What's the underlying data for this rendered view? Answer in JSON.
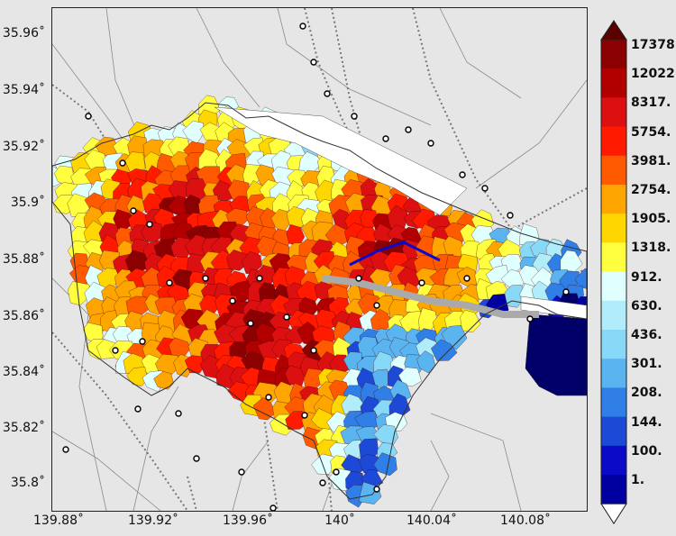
{
  "map": {
    "y_ticks": [
      "35.96˚",
      "35.94˚",
      "35.92˚",
      "35.9˚",
      "35.88˚",
      "35.86˚",
      "35.84˚",
      "35.82˚",
      "35.8˚"
    ],
    "x_ticks": [
      "139.88˚",
      "139.92˚",
      "139.96˚",
      "140˚",
      "140.04˚",
      "140.08˚"
    ],
    "background_color": "#e6e6e6",
    "water_color": "#aaaaaa",
    "road_color": "#8a8a8a",
    "rail_color": "#777777"
  },
  "colorbar": {
    "labels": [
      "17378.",
      "12022.",
      "8317.",
      "5754.",
      "3981.",
      "2754.",
      "1905.",
      "1318.",
      "912.",
      "630.",
      "436.",
      "301.",
      "208.",
      "144.",
      "100.",
      "1."
    ],
    "colors": [
      "#5a0000",
      "#8b0000",
      "#b20000",
      "#dc1010",
      "#ff1a00",
      "#ff5a00",
      "#ffa500",
      "#ffd700",
      "#ffff40",
      "#e0ffff",
      "#b0ecfa",
      "#88d8f8",
      "#5ab4f0",
      "#2f7fe6",
      "#1c4ad6",
      "#0a0ac8",
      "#0000a0",
      "#000068"
    ],
    "over_color": "#5a0000",
    "under_color": "#ffffff"
  }
}
